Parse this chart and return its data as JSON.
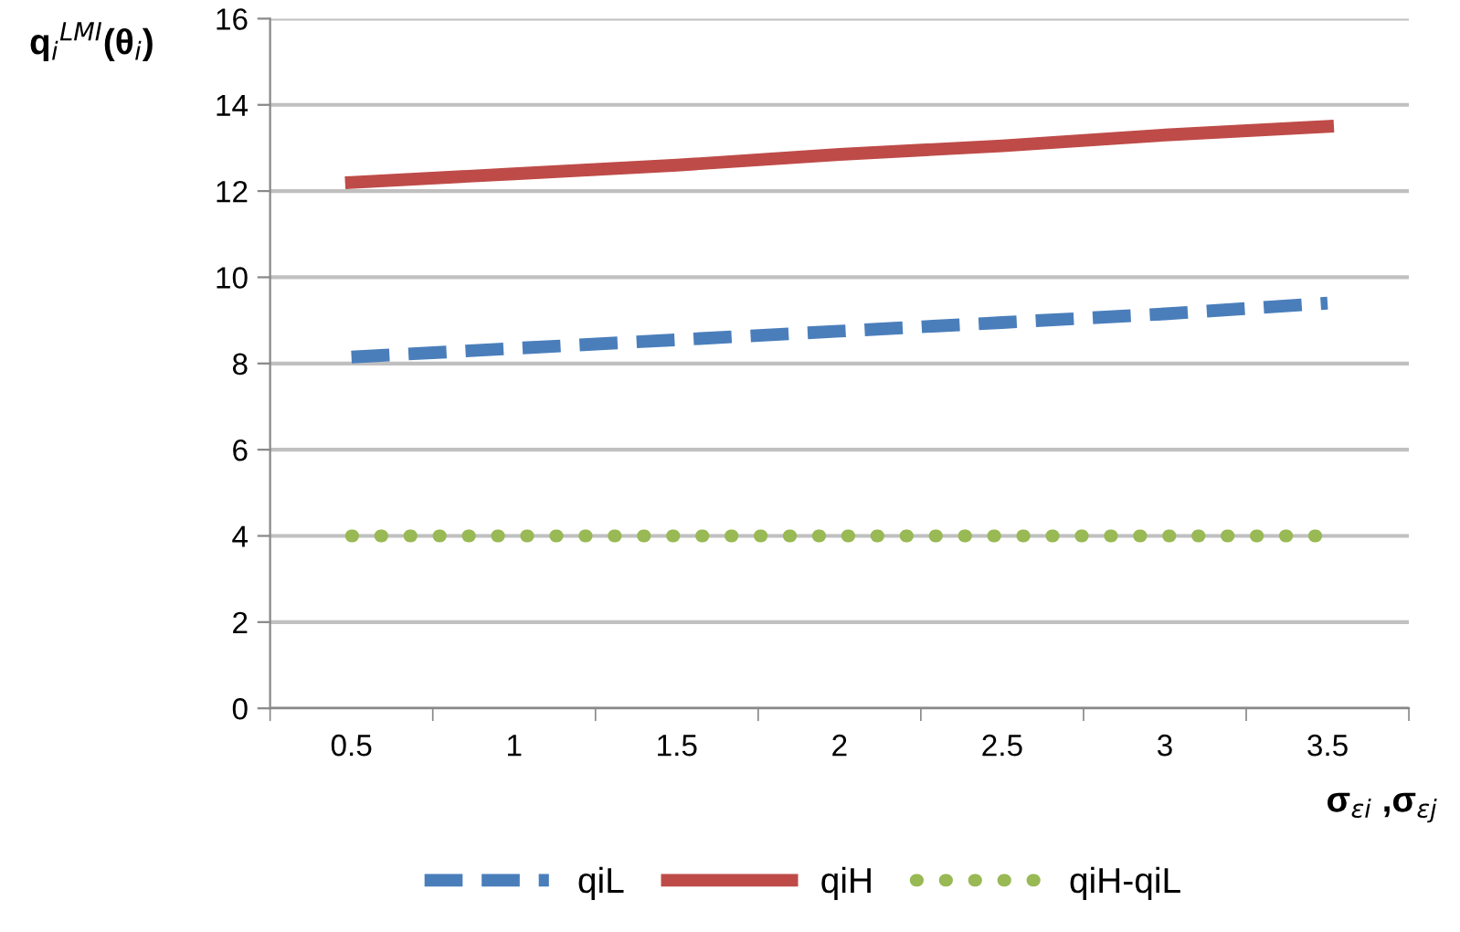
{
  "chart_data": {
    "type": "line",
    "xlabel": "σ$_{εi}$ ,σ$_{εj}$",
    "ylabel": "q$_{i}$$^{LMI}$(θ$_{i}$)",
    "categories": [
      "0.5",
      "1",
      "1.5",
      "2",
      "2.5",
      "3",
      "3.5"
    ],
    "series": [
      {
        "name": "qiL",
        "color": "#4a7ebb",
        "line_style": "dashed",
        "values": [
          8.15,
          8.35,
          8.55,
          8.75,
          8.95,
          9.15,
          9.4
        ]
      },
      {
        "name": "qiH",
        "color": "#be4b48",
        "line_style": "solid",
        "values": [
          12.2,
          12.4,
          12.6,
          12.85,
          13.05,
          13.3,
          13.5
        ]
      },
      {
        "name": "qiH-qiL",
        "color": "#98b954",
        "line_style": "dotted",
        "values": [
          4,
          4,
          4,
          4,
          4,
          4,
          4
        ]
      }
    ],
    "ylim": [
      0,
      16
    ],
    "yticks": [
      0,
      2,
      4,
      6,
      8,
      10,
      12,
      14,
      16
    ],
    "grid": "y",
    "legend": "bottom",
    "marker": "none"
  }
}
